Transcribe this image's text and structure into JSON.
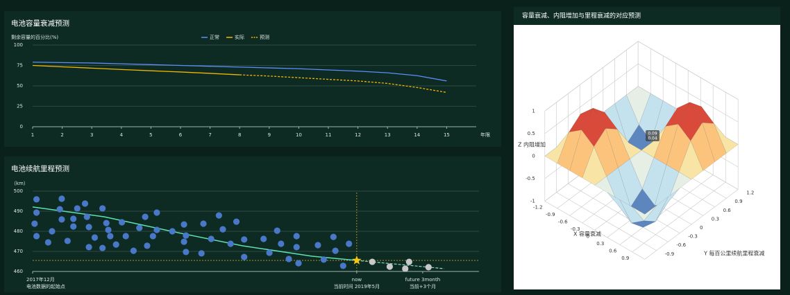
{
  "chart_data": [
    {
      "type": "line",
      "title": "电池容量衰减预测",
      "y_axis_label": "剩余容量的百分比(%)",
      "x_axis_label": "年限",
      "x": [
        1,
        2,
        3,
        4,
        5,
        6,
        7,
        8,
        9,
        10,
        11,
        12,
        13,
        14,
        15
      ],
      "xlim": [
        1,
        16
      ],
      "xticks": [
        1,
        2,
        3,
        4,
        5,
        6,
        7,
        8,
        9,
        10,
        11,
        12,
        13,
        14,
        15
      ],
      "ylim": [
        0,
        100
      ],
      "yticks": [
        0,
        25,
        50,
        75,
        100
      ],
      "grid": true,
      "series": [
        {
          "name": "正常",
          "color": "#5b8ff9",
          "values": [
            79,
            78.5,
            78,
            77,
            76,
            75,
            74,
            73,
            72,
            71,
            69.5,
            68,
            66,
            62.5,
            56
          ]
        },
        {
          "name": "实际",
          "color": "#f2b600",
          "values": [
            75,
            73.3,
            71.7,
            70,
            68.5,
            67,
            65.3,
            63.5,
            null,
            null,
            null,
            null,
            null,
            null,
            null
          ]
        },
        {
          "name": "预测",
          "color": "#f2b600",
          "dash": true,
          "values": [
            null,
            null,
            null,
            null,
            null,
            null,
            null,
            63.5,
            62,
            60,
            58,
            56,
            53,
            48,
            42
          ]
        }
      ]
    },
    {
      "type": "scatter",
      "title": "电池续航里程预测",
      "y_axis_label": "（km）",
      "xlim": [
        0,
        23
      ],
      "ylim": [
        460,
        500
      ],
      "yticks": [
        460,
        470,
        480,
        490,
        500
      ],
      "grid": true,
      "xticks": [
        {
          "value": 0,
          "label": "2017年12月"
        },
        {
          "value": 16.7,
          "label": "now"
        },
        {
          "value": 20.1,
          "label": "future 3month"
        }
      ],
      "x_sublabels": [
        "电池数据的起始点",
        "当前时间 2019年5月",
        "当前+3个月"
      ],
      "points": {
        "color": "#4a78c8",
        "x": [
          0.2,
          0.2,
          0.1,
          0.2,
          0.8,
          1.0,
          1.4,
          1.5,
          1.5,
          1.8,
          2.1,
          2.1,
          2.3,
          2.7,
          2.8,
          2.9,
          2.9,
          3.2,
          3.6,
          3.6,
          3.8,
          3.9,
          4.0,
          4.3,
          4.6,
          4.8,
          5.2,
          5.5,
          5.8,
          5.9,
          6.2,
          6.4,
          6.4,
          7.2,
          7.8,
          7.8,
          7.9,
          7.9,
          8.7,
          8.8,
          9.2,
          9.6,
          9.8,
          10.2,
          10.5,
          10.9,
          10.9,
          11.9,
          12.2,
          12.6,
          12.8,
          13.2,
          13.6,
          13.6,
          13.7,
          14.7,
          15.0,
          15.5,
          15.6,
          16.0,
          16.3
        ],
        "values": [
          495.9,
          489.3,
          483.8,
          477.6,
          474.5,
          480,
          491,
          496.2,
          485.9,
          475.2,
          486.2,
          482.4,
          491.4,
          493.8,
          487.2,
          482.1,
          472.1,
          476.9,
          471.7,
          491.4,
          484.1,
          480.7,
          477.6,
          473.4,
          484.5,
          477.6,
          470.3,
          481.7,
          487.2,
          472.8,
          477.6,
          489.3,
          480.7,
          480,
          483.4,
          474.8,
          477.9,
          469.7,
          469,
          483.8,
          476.2,
          487.9,
          481,
          473.8,
          484.8,
          475.9,
          467.2,
          476.2,
          469.3,
          480.3,
          473.8,
          466.2,
          477.6,
          472.1,
          464.1,
          473.1,
          465.9,
          477.2,
          470.3,
          462.8,
          473.8
        ]
      },
      "forecast_points": {
        "color": "#c8c8c8",
        "x": [
          17.5,
          18.4,
          19.2,
          19.4,
          20.4
        ],
        "values": [
          464.8,
          462.4,
          461.4,
          464.8,
          462.1
        ]
      },
      "trend": {
        "color": "#5fe0b0",
        "x": [
          0,
          3.7,
          7.3,
          10.8,
          14.4,
          16.7
        ],
        "values": [
          492.1,
          487.2,
          479.7,
          472.8,
          467.6,
          465.5
        ]
      },
      "trend_forecast": {
        "color": "#8fd9c4",
        "x": [
          16.7,
          21.2
        ],
        "values": [
          465.5,
          461.4
        ]
      },
      "now": {
        "x": 16.7,
        "value": 465.5,
        "color": "#f5c518"
      }
    },
    {
      "type": "surface",
      "title": "容量衰减、内阻增加与里程衰减的对应预测",
      "x_axis_label": "X 容量衰减",
      "y_axis_label": "Y 每百公里续航里程衰减",
      "z_axis_label": "Z 内阻增加",
      "x": [
        -1.2,
        -0.9,
        -0.6,
        -0.3,
        0,
        0.3,
        0.6,
        0.9,
        1.2
      ],
      "y": [
        -1.2,
        -0.9,
        -0.6,
        -0.3,
        0,
        0.3,
        0.6,
        0.9,
        1.2
      ],
      "z": [
        [
          0,
          0,
          0,
          0,
          0,
          0,
          0,
          0,
          0
        ],
        [
          0,
          0.5,
          0.71,
          0.5,
          0,
          -0.5,
          -0.71,
          -0.5,
          0
        ],
        [
          0,
          0.71,
          1,
          0.71,
          0,
          -0.71,
          -1,
          -0.71,
          0
        ],
        [
          0,
          0.5,
          0.71,
          0.5,
          0,
          -0.5,
          -0.71,
          -0.5,
          0
        ],
        [
          0,
          0,
          0,
          0,
          0,
          0,
          0,
          0,
          0
        ],
        [
          0,
          -0.5,
          -0.71,
          -0.5,
          0,
          0.5,
          0.71,
          0.5,
          0
        ],
        [
          0,
          -0.71,
          -1,
          -0.71,
          0,
          0.71,
          1,
          0.71,
          0
        ],
        [
          0,
          -0.5,
          -0.71,
          -0.5,
          0,
          0.5,
          0.71,
          0.5,
          0
        ],
        [
          0,
          0,
          0,
          0,
          0,
          0,
          0,
          0,
          0
        ]
      ],
      "xlim": [
        -1.2,
        1.2
      ],
      "ylim": [
        -1.2,
        1.2
      ],
      "zlim": [
        -1,
        1
      ],
      "xticks": [
        -1.2,
        -0.9,
        -0.6,
        -0.3,
        0,
        0.3,
        0.6,
        0.9
      ],
      "yticks": [
        -0.9,
        -0.6,
        -0.3,
        0,
        0.3,
        0.6,
        0.9,
        1.2
      ],
      "zticks": [
        -1,
        -0.5,
        0,
        0.5,
        1
      ],
      "colormap": [
        "#313695",
        "#74add1",
        "#e0f3f8",
        "#fee090",
        "#f46d43",
        "#a50026"
      ],
      "tooltip": [
        "0.09",
        "0.04"
      ]
    }
  ]
}
